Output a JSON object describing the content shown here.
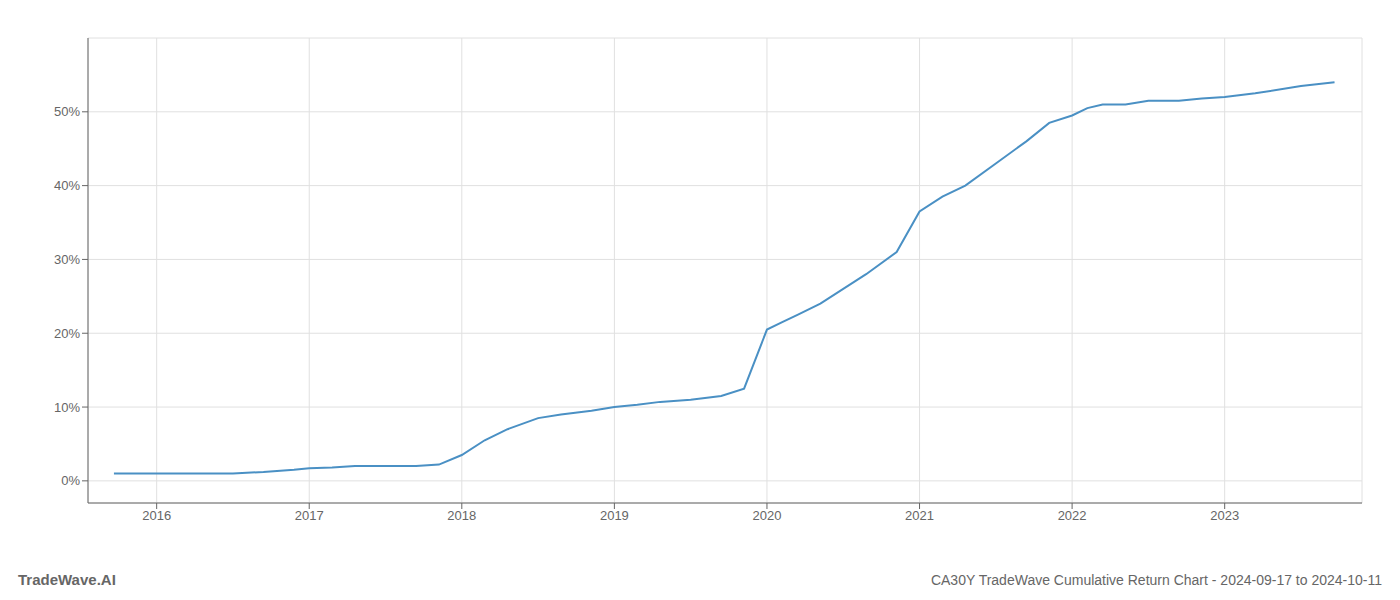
{
  "chart_data": {
    "type": "line",
    "title": "CA30Y TradeWave Cumulative Return Chart - 2024-09-17 to 2024-10-11",
    "annotations": [
      "TradeWave.AI"
    ],
    "x": [
      2015.72,
      2015.85,
      2016.0,
      2016.2,
      2016.5,
      2016.7,
      2016.9,
      2017.0,
      2017.15,
      2017.3,
      2017.5,
      2017.7,
      2017.85,
      2018.0,
      2018.15,
      2018.3,
      2018.5,
      2018.65,
      2018.85,
      2019.0,
      2019.15,
      2019.3,
      2019.5,
      2019.7,
      2019.85,
      2020.0,
      2020.1,
      2020.2,
      2020.35,
      2020.5,
      2020.65,
      2020.85,
      2021.0,
      2021.15,
      2021.3,
      2021.5,
      2021.7,
      2021.85,
      2022.0,
      2022.1,
      2022.2,
      2022.35,
      2022.5,
      2022.7,
      2022.85,
      2023.0,
      2023.2,
      2023.5,
      2023.72
    ],
    "values": [
      1.0,
      1.0,
      1.0,
      1.0,
      1.0,
      1.2,
      1.5,
      1.7,
      1.8,
      2.0,
      2.0,
      2.0,
      2.2,
      3.5,
      5.5,
      7.0,
      8.5,
      9.0,
      9.5,
      10.0,
      10.3,
      10.7,
      11.0,
      11.5,
      12.5,
      20.5,
      21.5,
      22.5,
      24.0,
      26.0,
      28.0,
      31.0,
      36.5,
      38.5,
      40.0,
      43.0,
      46.0,
      48.5,
      49.5,
      50.5,
      51.0,
      51.0,
      51.5,
      51.5,
      51.8,
      52.0,
      52.5,
      53.5,
      54.0
    ],
    "color": "#4a90c4",
    "xlim": [
      2015.55,
      2023.9
    ],
    "ylim": [
      -3,
      60
    ],
    "xticks": [
      2016,
      2017,
      2018,
      2019,
      2020,
      2021,
      2022,
      2023
    ],
    "yticks": [
      {
        "value": 0,
        "label": "0%"
      },
      {
        "value": 10,
        "label": "10%"
      },
      {
        "value": 20,
        "label": "20%"
      },
      {
        "value": 30,
        "label": "30%"
      },
      {
        "value": 40,
        "label": "40%"
      },
      {
        "value": 50,
        "label": "50%"
      }
    ],
    "grid": true
  }
}
